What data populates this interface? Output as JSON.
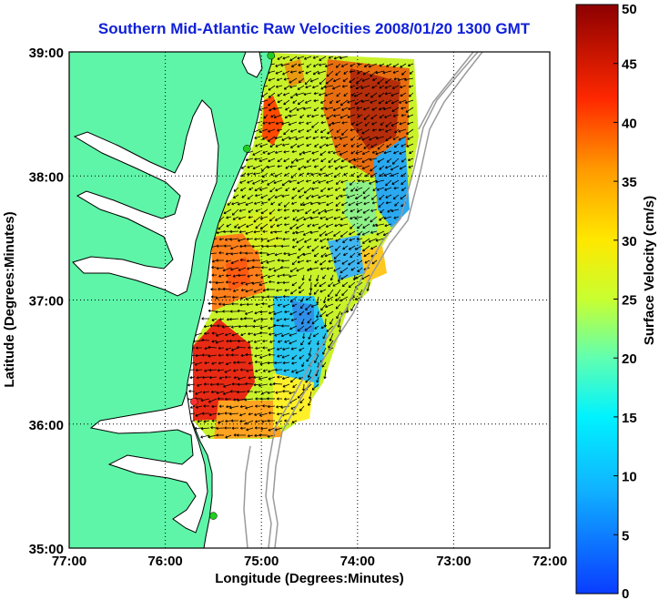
{
  "title": "Southern Mid-Atlantic Raw Velocities 2008/01/20 1300 GMT",
  "map": {
    "xlabel": "Longitude (Degrees:Minutes)",
    "ylabel": "Latitude (Degrees:Minutes)",
    "xticks": [
      "77:00",
      "76:00",
      "75:00",
      "74:00",
      "73:00",
      "72:00"
    ],
    "yticks": [
      "39:00",
      "38:00",
      "37:00",
      "36:00",
      "35:00"
    ],
    "lon_range": [
      -77,
      -72
    ],
    "lat_range": [
      35,
      39
    ],
    "grid": "dotted",
    "land_color": "#5ef5a8",
    "coastline_color": "#000000",
    "bathymetry_color": "#9a9a9a",
    "arrow_color": "#000000",
    "site_markers": [
      {
        "color": "#22cc22",
        "lon": -74.9,
        "lat": 38.97
      },
      {
        "color": "#22cc22",
        "lon": -75.15,
        "lat": 38.22
      },
      {
        "color": "#ff3030",
        "lon": -75.7,
        "lat": 36.18
      },
      {
        "color": "#22cc22",
        "lon": -75.5,
        "lat": 35.26
      }
    ]
  },
  "colorbar": {
    "label": "Surface Velocity (cm/s)",
    "ticks": [
      "0",
      "5",
      "10",
      "15",
      "20",
      "25",
      "30",
      "35",
      "40",
      "45",
      "50"
    ],
    "min": 0,
    "max": 50,
    "colormap": "jet"
  }
}
